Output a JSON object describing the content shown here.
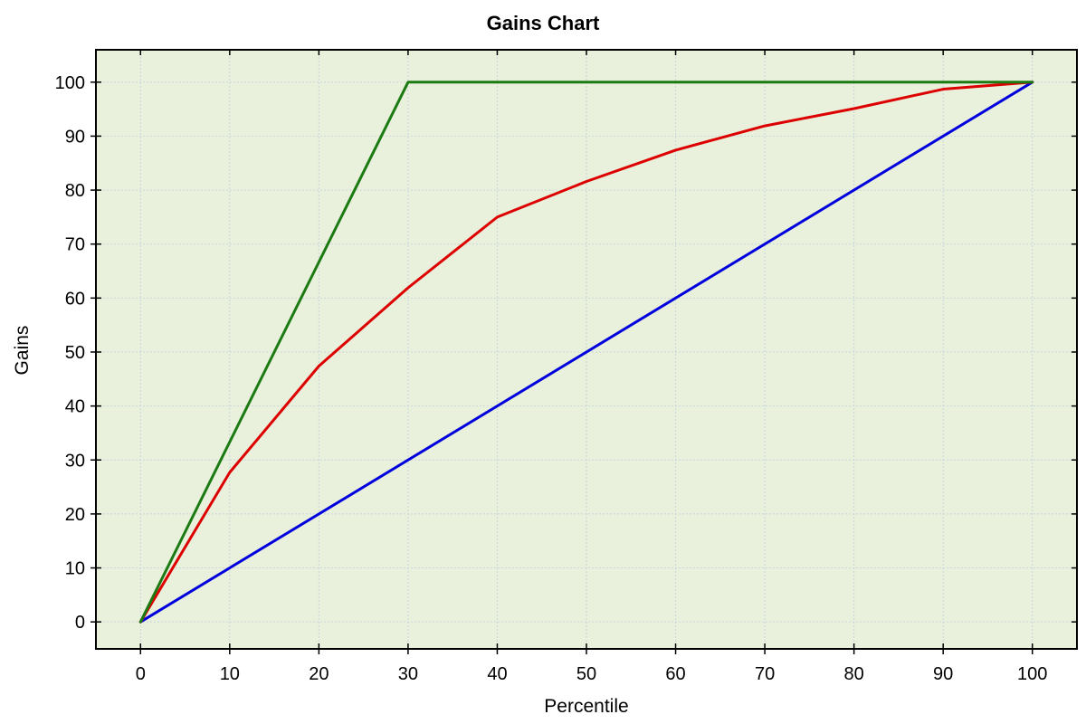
{
  "chart_data": {
    "type": "line",
    "title": "Gains Chart",
    "xlabel": "Percentile",
    "ylabel": "Gains",
    "xlim": [
      -5,
      105
    ],
    "ylim": [
      -5,
      106
    ],
    "x_ticks": [
      0,
      10,
      20,
      30,
      40,
      50,
      60,
      70,
      80,
      90,
      100
    ],
    "y_ticks": [
      0,
      10,
      20,
      30,
      40,
      50,
      60,
      70,
      80,
      90,
      100
    ],
    "x_tick_labels": [
      "0",
      "10",
      "20",
      "30",
      "40",
      "50",
      "60",
      "70",
      "80",
      "90",
      "100"
    ],
    "y_tick_labels": [
      "0",
      "10",
      "20",
      "30",
      "40",
      "50",
      "60",
      "70",
      "80",
      "90",
      "100"
    ],
    "grid": true,
    "legend": "none",
    "colors": {
      "plot_background": "#e9f0dc",
      "grid": "#c9d6dc",
      "frame": "#000000"
    },
    "series": [
      {
        "color": "#0000dd",
        "x": [
          0,
          100
        ],
        "y": [
          0,
          100
        ]
      },
      {
        "color": "#dd0000",
        "x": [
          0,
          10,
          20,
          30,
          40,
          50,
          60,
          70,
          80,
          90,
          100
        ],
        "y": [
          0,
          27.7,
          47.4,
          61.9,
          75.0,
          81.6,
          87.4,
          91.9,
          95.1,
          98.7,
          100
        ]
      },
      {
        "color": "#1b7a12",
        "x": [
          0,
          30,
          100
        ],
        "y": [
          0,
          100,
          100
        ]
      }
    ]
  }
}
